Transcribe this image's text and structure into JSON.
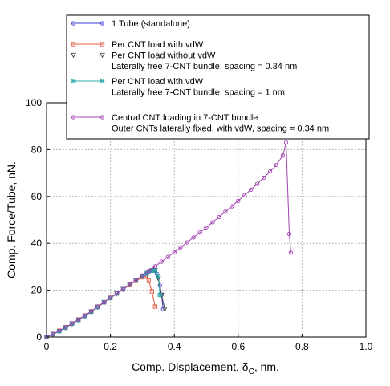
{
  "chart_data": {
    "type": "line",
    "xlabel": "Comp. Displacement, δ",
    "xlabel_sub": "C",
    "xlabel_suffix": ", nm.",
    "ylabel": "Comp. Force/Tube, nN.",
    "xlim": [
      0,
      1.0
    ],
    "ylim": [
      0,
      100
    ],
    "xticks": [
      "0",
      "0.2",
      "0.4",
      "0.6",
      "0.8",
      "1.0"
    ],
    "yticks": [
      "0",
      "20",
      "40",
      "60",
      "80",
      "100"
    ],
    "x_tick_values": [
      0,
      0.2,
      0.4,
      0.6,
      0.8,
      1.0
    ],
    "y_tick_values": [
      0,
      20,
      40,
      60,
      80,
      100
    ],
    "grid": true,
    "legend_position": "top-center",
    "series": [
      {
        "name": "1 Tube (standalone)",
        "color": "#3a3ad0",
        "marker": "circle",
        "x": [
          0,
          0.02,
          0.04,
          0.06,
          0.08,
          0.1,
          0.12,
          0.14,
          0.16,
          0.18,
          0.2,
          0.22,
          0.24,
          0.26,
          0.28,
          0.3,
          0.31,
          0.32,
          0.33,
          0.335,
          0.345,
          0.355,
          0.36,
          0.365
        ],
        "y": [
          0,
          1.2,
          2.5,
          4,
          5.7,
          7.3,
          9,
          10.8,
          12.8,
          14.8,
          16.7,
          18.6,
          20.4,
          22.5,
          24.2,
          26,
          26.8,
          27.7,
          28.3,
          28.8,
          27,
          22,
          18,
          12
        ]
      },
      {
        "name": "Per CNT load with vdW",
        "color": "#e05a40",
        "marker": "square",
        "x": [
          0,
          0.02,
          0.04,
          0.06,
          0.08,
          0.1,
          0.12,
          0.14,
          0.16,
          0.18,
          0.2,
          0.22,
          0.24,
          0.26,
          0.28,
          0.3,
          0.31,
          0.32,
          0.33,
          0.34
        ],
        "y": [
          0,
          1.3,
          2.7,
          4.2,
          5.8,
          7.5,
          9.2,
          11,
          13,
          14.9,
          16.8,
          18.7,
          20.4,
          22.2,
          24,
          25.5,
          25.8,
          24,
          19.5,
          13
        ]
      },
      {
        "name": "Per CNT load without vdW",
        "color": "#444444",
        "marker": "triangle-down",
        "x": [
          0,
          0.02,
          0.04,
          0.06,
          0.08,
          0.1,
          0.12,
          0.14,
          0.16,
          0.18,
          0.2,
          0.22,
          0.24,
          0.26,
          0.28,
          0.3,
          0.315,
          0.33,
          0.34,
          0.35,
          0.36,
          0.37
        ],
        "y": [
          0,
          1.2,
          2.5,
          4,
          5.7,
          7.3,
          9,
          10.8,
          12.8,
          14.8,
          16.7,
          18.6,
          20.4,
          22.5,
          24.2,
          26,
          27.3,
          28.5,
          28.5,
          25,
          18,
          12
        ]
      },
      {
        "name": "Per CNT load with vdW",
        "color": "#2aa8a8",
        "marker": "square-x",
        "x": [
          0,
          0.02,
          0.04,
          0.06,
          0.08,
          0.1,
          0.12,
          0.14,
          0.16,
          0.18,
          0.2,
          0.22,
          0.24,
          0.26,
          0.28,
          0.3,
          0.315,
          0.33,
          0.34,
          0.35,
          0.355
        ],
        "y": [
          0,
          1.2,
          2.5,
          4,
          5.7,
          7.3,
          9,
          10.8,
          12.8,
          14.8,
          16.7,
          18.6,
          20.4,
          22.5,
          24.2,
          26,
          27.3,
          28.4,
          28.3,
          26,
          18
        ]
      },
      {
        "name": "Central CNT loading in 7-CNT bundle",
        "color": "#a040b0",
        "marker": "circle",
        "x": [
          0,
          0.02,
          0.04,
          0.06,
          0.08,
          0.1,
          0.12,
          0.14,
          0.16,
          0.18,
          0.2,
          0.22,
          0.24,
          0.26,
          0.28,
          0.3,
          0.32,
          0.34,
          0.36,
          0.38,
          0.4,
          0.42,
          0.44,
          0.46,
          0.48,
          0.5,
          0.52,
          0.54,
          0.56,
          0.58,
          0.6,
          0.62,
          0.64,
          0.66,
          0.68,
          0.7,
          0.72,
          0.74,
          0.75,
          0.76,
          0.765
        ],
        "y": [
          0,
          1.3,
          2.7,
          4.2,
          5.8,
          7.5,
          9.2,
          11,
          13,
          14.8,
          16.8,
          18.6,
          20.5,
          22.5,
          24.3,
          26.3,
          28.2,
          30.2,
          32.2,
          34.2,
          36.2,
          38.3,
          40.4,
          42.5,
          44.6,
          46.8,
          49,
          51.2,
          53.5,
          55.8,
          58.1,
          60.5,
          62.9,
          65.4,
          68,
          70.7,
          73.5,
          77.5,
          83,
          44,
          36
        ]
      }
    ],
    "legend": [
      {
        "series": 0,
        "lines": [
          "1 Tube (standalone)"
        ]
      },
      {
        "series": 1,
        "lines": [
          "Per CNT load with vdW"
        ]
      },
      {
        "series": 2,
        "lines": [
          "Per CNT load without vdW",
          "Laterally free 7-CNT bundle, spacing = 0.34 nm"
        ]
      },
      {
        "series": 3,
        "lines": [
          "Per CNT load with vdW",
          "Laterally free 7-CNT bundle, spacing = 1 nm"
        ]
      },
      {
        "series": 4,
        "lines": [
          "Central CNT loading in 7-CNT bundle",
          "Outer CNTs laterally fixed, with vdW, spacing = 0.34 nm"
        ]
      }
    ]
  }
}
